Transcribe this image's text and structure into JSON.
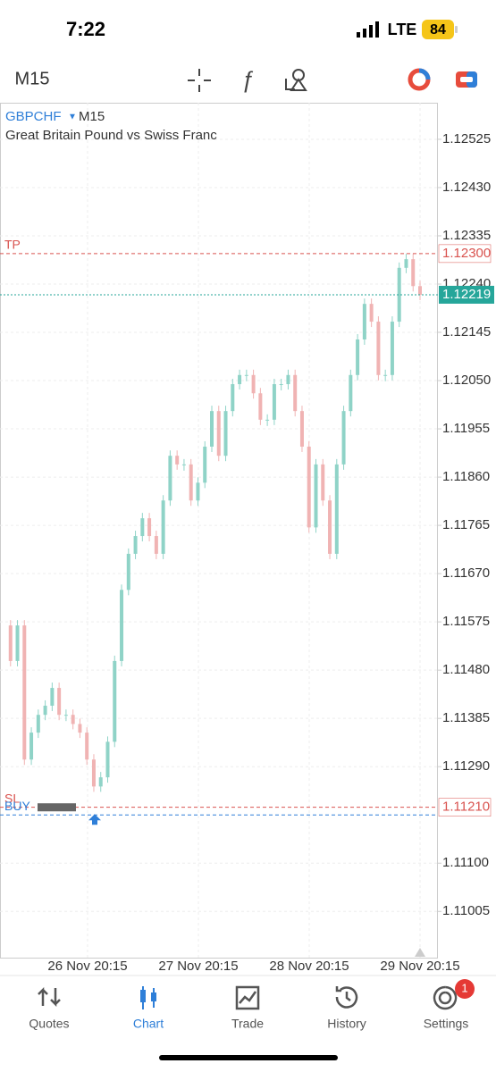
{
  "status_bar": {
    "time": "7:22",
    "network": "LTE",
    "battery": "84"
  },
  "toolbar": {
    "timeframe": "M15"
  },
  "chart": {
    "type": "candlestick",
    "symbol": "GBPCHF",
    "timeframe": "M15",
    "description": "Great Britain Pound vs Swiss Franc",
    "ylim": [
      1.10914,
      1.12597
    ],
    "yticks": [
      {
        "value": 1.12525,
        "label": "1.12525"
      },
      {
        "value": 1.1243,
        "label": "1.12430"
      },
      {
        "value": 1.12335,
        "label": "1.12335"
      },
      {
        "value": 1.1224,
        "label": "1.12240"
      },
      {
        "value": 1.12145,
        "label": "1.12145"
      },
      {
        "value": 1.1205,
        "label": "1.12050"
      },
      {
        "value": 1.11955,
        "label": "1.11955"
      },
      {
        "value": 1.1186,
        "label": "1.11860"
      },
      {
        "value": 1.11765,
        "label": "1.11765"
      },
      {
        "value": 1.1167,
        "label": "1.11670"
      },
      {
        "value": 1.11575,
        "label": "1.11575"
      },
      {
        "value": 1.1148,
        "label": "1.11480"
      },
      {
        "value": 1.11385,
        "label": "1.11385"
      },
      {
        "value": 1.1129,
        "label": "1.11290"
      },
      {
        "value": 1.111,
        "label": "1.11100"
      },
      {
        "value": 1.11005,
        "label": "1.11005"
      }
    ],
    "x_labels": [
      "26 Nov 20:15",
      "27 Nov 20:15",
      "28 Nov 20:15",
      "29 Nov 20:15"
    ],
    "up_color": "#8fd3c7",
    "down_color": "#f0b3b3",
    "closes": [
      1.11568,
      1.11498,
      1.11568,
      1.11304,
      1.11357,
      1.11392,
      1.1141,
      1.11445,
      1.11392,
      1.11392,
      1.11374,
      1.11357,
      1.11304,
      1.11251,
      1.11269,
      1.11339,
      1.11498,
      1.11638,
      1.11709,
      1.11744,
      1.11779,
      1.11744,
      1.11709,
      1.11814,
      1.11902,
      1.11885,
      1.11885,
      1.11814,
      1.11849,
      1.1192,
      1.1199,
      1.11902,
      1.1199,
      1.12043,
      1.12061,
      1.12061,
      1.12025,
      1.11973,
      1.11973,
      1.12043,
      1.12043,
      1.12061,
      1.1199,
      1.1192,
      1.11761,
      1.11885,
      1.11814,
      1.11709,
      1.11885,
      1.1199,
      1.12061,
      1.12131,
      1.12201,
      1.12166,
      1.12061,
      1.12061,
      1.12166,
      1.12272,
      1.12289,
      1.12236,
      1.12219
    ],
    "levels": [
      {
        "name": "TP",
        "value": 1.123,
        "label": "1.12300",
        "color": "#d9534f"
      },
      {
        "name": "SL",
        "value": 1.1121,
        "label": "1.11210",
        "color": "#d9534f"
      },
      {
        "name": "BUY",
        "value": 1.11195,
        "color": "#2f7fd8"
      }
    ],
    "current": {
      "value": 1.12219,
      "label": "1.12219",
      "color": "#26a69a"
    }
  },
  "nav": {
    "tabs": [
      "Quotes",
      "Chart",
      "Trade",
      "History",
      "Settings"
    ],
    "active": 1,
    "badge": "1"
  }
}
